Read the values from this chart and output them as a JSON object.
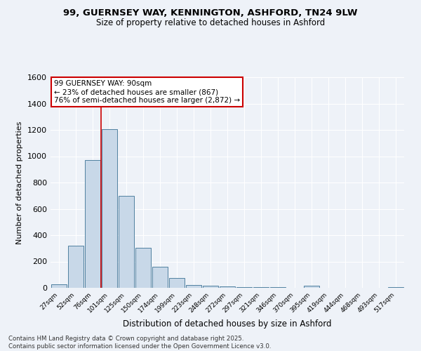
{
  "title": "99, GUERNSEY WAY, KENNINGTON, ASHFORD, TN24 9LW",
  "subtitle": "Size of property relative to detached houses in Ashford",
  "xlabel": "Distribution of detached houses by size in Ashford",
  "ylabel": "Number of detached properties",
  "footnote1": "Contains HM Land Registry data © Crown copyright and database right 2025.",
  "footnote2": "Contains public sector information licensed under the Open Government Licence v3.0.",
  "annotation_line1": "99 GUERNSEY WAY: 90sqm",
  "annotation_line2": "← 23% of detached houses are smaller (867)",
  "annotation_line3": "76% of semi-detached houses are larger (2,872) →",
  "bar_color": "#c8d8e8",
  "bar_edge_color": "#5080a0",
  "vline_color": "#cc0000",
  "vline_x": 2.5,
  "background_color": "#eef2f8",
  "grid_color": "#ffffff",
  "categories": [
    "27sqm",
    "52sqm",
    "76sqm",
    "101sqm",
    "125sqm",
    "150sqm",
    "174sqm",
    "199sqm",
    "223sqm",
    "248sqm",
    "272sqm",
    "297sqm",
    "321sqm",
    "346sqm",
    "370sqm",
    "395sqm",
    "419sqm",
    "444sqm",
    "468sqm",
    "493sqm",
    "517sqm"
  ],
  "values": [
    25,
    320,
    970,
    1205,
    700,
    305,
    160,
    75,
    22,
    14,
    10,
    8,
    5,
    3,
    2,
    15,
    2,
    1,
    1,
    1,
    8
  ],
  "ylim": [
    0,
    1600
  ],
  "yticks": [
    0,
    200,
    400,
    600,
    800,
    1000,
    1200,
    1400,
    1600
  ]
}
